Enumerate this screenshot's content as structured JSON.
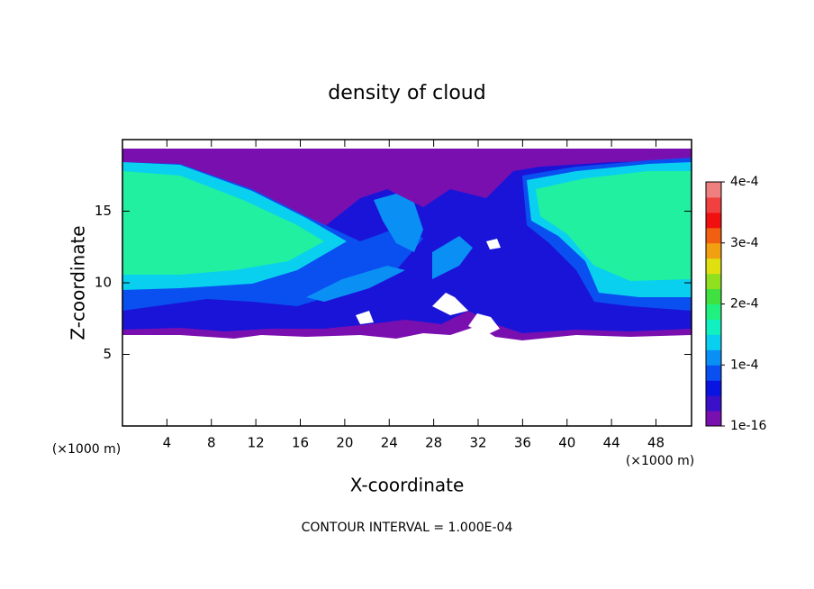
{
  "chart_data": {
    "type": "contour",
    "title": "density of cloud",
    "x_label": "X-coordinate",
    "y_label": "Z-coordinate",
    "x_unit_left": "(×1000 m)",
    "x_unit_right": "(×1000 m)",
    "footnote": "CONTOUR INTERVAL = 1.000E-04",
    "xlim": [
      0,
      51.2
    ],
    "ylim": [
      0,
      20
    ],
    "xticks": [
      4,
      8,
      12,
      16,
      20,
      24,
      28,
      32,
      36,
      40,
      44,
      48
    ],
    "yticks": [
      5,
      10,
      15
    ],
    "colorbar": {
      "lim": [
        0,
        0.0004
      ],
      "ticks": [
        {
          "value": 1e-16,
          "label": "1e-16"
        },
        {
          "value": 0.0001,
          "label": "1e-4"
        },
        {
          "value": 0.0002,
          "label": "2e-4"
        },
        {
          "value": 0.0003,
          "label": "3e-4"
        },
        {
          "value": 0.0004,
          "label": "4e-4"
        }
      ],
      "colors": [
        "#7a0fb0",
        "#3a10c8",
        "#0a14e0",
        "#0a50f0",
        "#0a90f5",
        "#0ad0f0",
        "#10f0c0",
        "#20f080",
        "#40e040",
        "#90e020",
        "#e0e010",
        "#f0a010",
        "#f06010",
        "#f01010",
        "#f04040",
        "#f08080"
      ]
    }
  }
}
